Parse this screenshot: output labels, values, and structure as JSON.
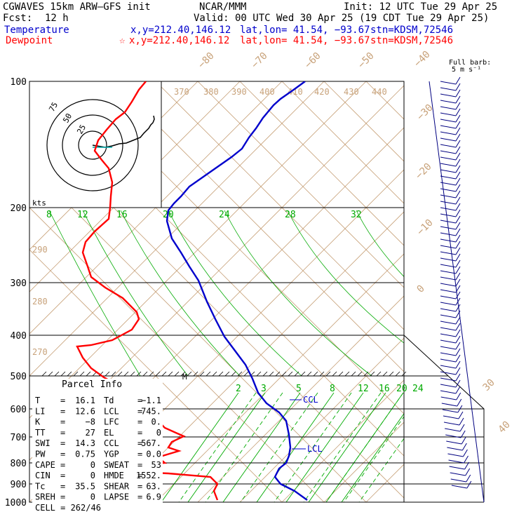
{
  "header": {
    "model": "CGWAVES 15km ARW–GFS init",
    "fcst_label": "Fcst:",
    "fcst_value": "12 h",
    "center": "NCAR/MMM",
    "init": "Init: 12 UTC Tue 29 Apr 25",
    "valid": "Valid: 00 UTC Wed 30 Apr 25 (19 CDT Tue 29 Apr 25)",
    "temp_label": "Temperature",
    "temp_xy": "x,y=212.40,146.12",
    "temp_latlon": "lat,lon= 41.54, −93.67",
    "temp_stn": "stn=KDSM,72546",
    "dew_label": "Dewpoint",
    "dew_xy": "x,y=212.40,146.12",
    "dew_latlon": "lat,lon= 41.54, −93.67",
    "dew_stn": "stn=KDSM,72546",
    "barb_line1": "Full barb:",
    "barb_line2": "5 m s⁻¹"
  },
  "colors": {
    "temperature": "#0000cc",
    "dewpoint": "#ff0000",
    "mixing_ratio": "#00aa00",
    "isotherm": "#c8a27a",
    "dry_adiabat": "#c8a27a",
    "grid": "#000000"
  },
  "hodograph": {
    "units": "kts",
    "rings": [
      "25",
      "50",
      "75"
    ]
  },
  "parcel": {
    "title": "Parcel Info",
    "left": [
      {
        "k": "T",
        "v": "16.1"
      },
      {
        "k": "LI",
        "v": "12.6"
      },
      {
        "k": "K",
        "v": "−8"
      },
      {
        "k": "TT",
        "v": "27"
      },
      {
        "k": "SWI",
        "v": "14.3"
      },
      {
        "k": "PW",
        "v": "0.75"
      },
      {
        "k": "CAPE",
        "v": "0"
      },
      {
        "k": "CIN",
        "v": "0"
      },
      {
        "k": "Tc",
        "v": "35.5"
      },
      {
        "k": "SREH",
        "v": "0"
      }
    ],
    "right": [
      {
        "k": "Td",
        "v": "−1.1"
      },
      {
        "k": "LCL",
        "v": "745."
      },
      {
        "k": "LFC",
        "v": "0."
      },
      {
        "k": "EL",
        "v": "0"
      },
      {
        "k": "CCL",
        "v": "567."
      },
      {
        "k": "YGP",
        "v": "0.0"
      },
      {
        "k": "SWEAT",
        "v": "53"
      },
      {
        "k": "HMDE",
        "v": "1552."
      },
      {
        "k": "SHEAR",
        "v": "63."
      },
      {
        "k": "LAPSE",
        "v": "6.9"
      }
    ],
    "cell": "CELL = 262/46"
  },
  "chart_data": {
    "type": "line",
    "pressure_levels": [
      100,
      200,
      300,
      400,
      500,
      600,
      700,
      800,
      900,
      1000
    ],
    "pressure_labels": [
      "100",
      "200",
      "300",
      "400",
      "500",
      "600",
      "700",
      "800",
      "900",
      "1000"
    ],
    "isotherm_labels": [
      "−80",
      "−70",
      "−60",
      "−50",
      "−40",
      "−30",
      "−20",
      "−10",
      "0",
      "30",
      "40"
    ],
    "theta_labels": [
      "370",
      "380",
      "390",
      "400",
      "410",
      "420",
      "430",
      "440",
      "290",
      "280",
      "270"
    ],
    "mixing_ratio_upper": [
      "8",
      "12",
      "16",
      "20",
      "24",
      "28",
      "32"
    ],
    "mixing_ratio_lower": [
      "2",
      "3",
      "5",
      "8",
      "12",
      "16",
      "20",
      "24"
    ],
    "annotations": [
      "CCL",
      "LCL",
      "M"
    ],
    "series": [
      {
        "name": "Temperature",
        "points": [
          [
            435,
            116
          ],
          [
            420,
            127
          ],
          [
            400,
            141
          ],
          [
            390,
            150
          ],
          [
            375,
            168
          ],
          [
            365,
            183
          ],
          [
            355,
            196
          ],
          [
            345,
            212
          ],
          [
            330,
            224
          ],
          [
            310,
            238
          ],
          [
            290,
            252
          ],
          [
            270,
            266
          ],
          [
            258,
            280
          ],
          [
            248,
            290
          ],
          [
            240,
            300
          ],
          [
            238,
            315
          ],
          [
            245,
            340
          ],
          [
            258,
            360
          ],
          [
            270,
            380
          ],
          [
            283,
            400
          ],
          [
            295,
            430
          ],
          [
            307,
            455
          ],
          [
            320,
            480
          ],
          [
            335,
            500
          ],
          [
            350,
            520
          ],
          [
            360,
            540
          ],
          [
            368,
            560
          ],
          [
            380,
            575
          ],
          [
            398,
            588
          ],
          [
            408,
            600
          ],
          [
            412,
            620
          ],
          [
            414,
            638
          ],
          [
            412,
            650
          ],
          [
            408,
            660
          ],
          [
            398,
            668
          ],
          [
            392,
            680
          ],
          [
            400,
            690
          ],
          [
            420,
            700
          ],
          [
            438,
            713
          ]
        ]
      },
      {
        "name": "Dewpoint",
        "points": [
          [
            208,
            116
          ],
          [
            198,
            128
          ],
          [
            188,
            145
          ],
          [
            178,
            160
          ],
          [
            165,
            170
          ],
          [
            152,
            185
          ],
          [
            140,
            200
          ],
          [
            135,
            215
          ],
          [
            145,
            228
          ],
          [
            155,
            240
          ],
          [
            160,
            260
          ],
          [
            158,
            280
          ],
          [
            157,
            296
          ],
          [
            155,
            312
          ],
          [
            135,
            330
          ],
          [
            122,
            345
          ],
          [
            118,
            360
          ],
          [
            125,
            380
          ],
          [
            130,
            395
          ],
          [
            150,
            410
          ],
          [
            175,
            425
          ],
          [
            195,
            445
          ],
          [
            198,
            455
          ],
          [
            188,
            470
          ],
          [
            160,
            485
          ],
          [
            130,
            492
          ],
          [
            110,
            494
          ],
          [
            118,
            510
          ],
          [
            130,
            525
          ],
          [
            148,
            538
          ],
          [
            180,
            555
          ],
          [
            205,
            570
          ],
          [
            220,
            580
          ],
          [
            225,
            600
          ],
          [
            235,
            610
          ],
          [
            262,
            622
          ],
          [
            245,
            630
          ],
          [
            240,
            638
          ],
          [
            255,
            643
          ],
          [
            225,
            652
          ],
          [
            235,
            660
          ],
          [
            150,
            665
          ],
          [
            130,
            668
          ],
          [
            170,
            672
          ],
          [
            240,
            675
          ],
          [
            300,
            680
          ],
          [
            310,
            690
          ],
          [
            305,
            700
          ],
          [
            310,
            713
          ]
        ]
      }
    ],
    "hodograph_trace": [
      [
        132,
        207
      ],
      [
        150,
        210
      ],
      [
        160,
        208
      ],
      [
        170,
        205
      ],
      [
        180,
        204
      ],
      [
        190,
        200
      ],
      [
        200,
        196
      ],
      [
        205,
        190
      ],
      [
        212,
        183
      ],
      [
        215,
        178
      ],
      [
        218,
        175
      ],
      [
        220,
        170
      ],
      [
        219,
        165
      ]
    ],
    "hodograph_upper_trace": [
      [
        132,
        207
      ],
      [
        128,
        205
      ],
      [
        135,
        195
      ],
      [
        150,
        185
      ],
      [
        165,
        172
      ],
      [
        180,
        160
      ],
      [
        188,
        145
      ],
      [
        198,
        128
      ],
      [
        208,
        116
      ]
    ]
  }
}
